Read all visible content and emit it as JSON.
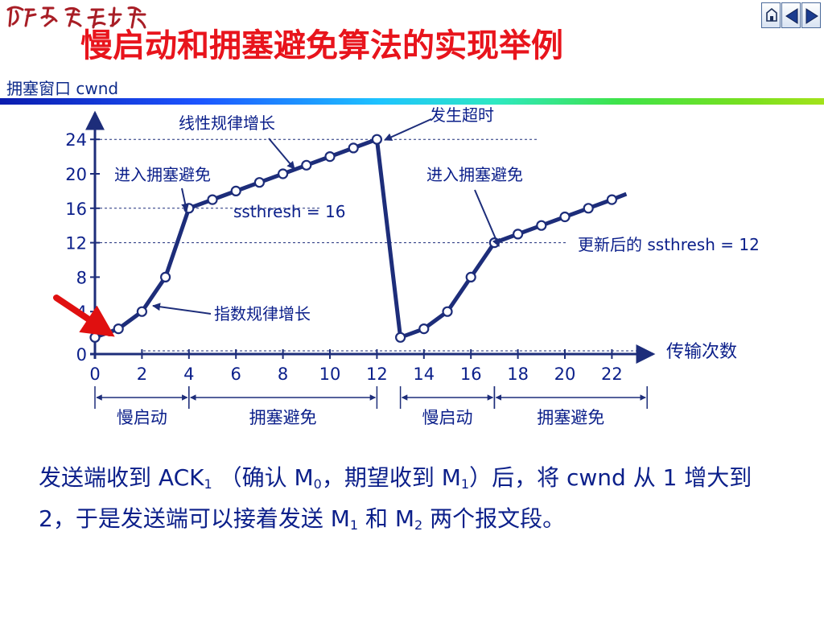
{
  "logo_text": "西南交通大學",
  "title": "慢启动和拥塞避免算法的实现举例",
  "y_label": "拥塞窗口 cwnd",
  "nav": {
    "home": "home-icon",
    "prev": "previous-slide-icon",
    "next": "next-slide-icon"
  },
  "colors": {
    "title": "#e8141c",
    "text": "#0b1f8a",
    "arrow": "#e01010"
  },
  "chart_data": {
    "type": "line",
    "x_label": "传输次数",
    "x_ticks": [
      "0",
      "2",
      "4",
      "6",
      "8",
      "10",
      "12",
      "14",
      "16",
      "18",
      "20",
      "22"
    ],
    "y_ticks": [
      "0",
      "4",
      "8",
      "12",
      "16",
      "20",
      "24"
    ],
    "xlim": [
      0,
      24
    ],
    "ylim": [
      0,
      26
    ],
    "x": [
      0,
      1,
      2,
      3,
      4,
      5,
      6,
      7,
      8,
      9,
      10,
      11,
      12,
      13,
      14,
      15,
      16,
      17,
      18,
      19,
      20,
      21,
      22
    ],
    "y": [
      1,
      2,
      4,
      8,
      16,
      17,
      18,
      19,
      20,
      21,
      22,
      23,
      24,
      1,
      2,
      4,
      8,
      12,
      13,
      14,
      15,
      16,
      17
    ],
    "ssthresh_lines": [
      {
        "value": 16,
        "label": "ssthresh = 16"
      },
      {
        "value": 12,
        "label": "更新后的 ssthresh = 12"
      },
      {
        "value": 24
      }
    ],
    "annotations": {
      "linear": "线性规律增长",
      "timeout": "发生超时",
      "enter1": "进入拥塞避免",
      "enter2": "进入拥塞避免",
      "exponential": "指数规律增长"
    },
    "phases": [
      "慢启动",
      "拥塞避免",
      "慢启动",
      "拥塞避免"
    ]
  },
  "caption": {
    "p1": "发送端收到 ACK",
    "s1": "1",
    "p2": " （确认 M",
    "s2": "0",
    "p3": "，期望收到 M",
    "s3": "1",
    "p4": "）后，将 cwnd 从 1 增大到 2，于是发送端可以接着发送 M",
    "s4": "1",
    "p5": " 和 M",
    "s5": "2",
    "p6": " 两个报文段。"
  }
}
